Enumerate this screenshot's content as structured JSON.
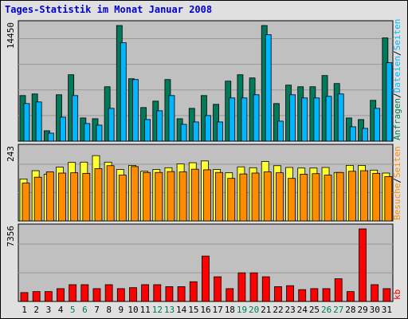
{
  "chart_data": {
    "type": "bar",
    "title": "Tages-Statistik im Monat Januar 2008",
    "categories": [
      "1",
      "2",
      "3",
      "4",
      "5",
      "6",
      "7",
      "8",
      "9",
      "10",
      "11",
      "12",
      "13",
      "14",
      "15",
      "16",
      "17",
      "18",
      "19",
      "20",
      "21",
      "22",
      "23",
      "24",
      "25",
      "26",
      "27",
      "28",
      "29",
      "30",
      "31"
    ],
    "weekend_days": [
      "5",
      "6",
      "12",
      "13",
      "19",
      "20",
      "26",
      "27"
    ],
    "colors": {
      "frame_bg": "#e0e0e0",
      "plot_bg": "#c0c0c0",
      "title": "#0000cc",
      "anfragen": "#007a5a",
      "dateien": "#00b7ff",
      "seiten_top": "#ffff33",
      "besuche": "#ff8c00",
      "kb": "#ff0000",
      "weekday_label": "#000000",
      "weekend_label": "#007a5a"
    },
    "panels": [
      {
        "id": "hits",
        "ymax_label": "14450",
        "ylim": [
          0,
          14450
        ],
        "series": [
          {
            "name": "Anfragen",
            "values": [
              5700,
              5900,
              1300,
              5800,
              8300,
              2900,
              2800,
              6800,
              14450,
              7800,
              4200,
              5000,
              7700,
              2800,
              4100,
              5700,
              4600,
              7500,
              8300,
              7900,
              14450,
              4700,
              7000,
              6800,
              6800,
              8200,
              7200,
              2900,
              2700,
              5100,
              12900
            ]
          },
          {
            "name": "Dateien",
            "values": [
              4700,
              4900,
              1000,
              3000,
              5700,
              2200,
              2000,
              4100,
              12300,
              7700,
              2700,
              3800,
              5700,
              2100,
              2400,
              3200,
              2400,
              5400,
              5400,
              5800,
              13300,
              2500,
              5800,
              5400,
              5400,
              5600,
              5900,
              1800,
              1600,
              4100,
              9800
            ]
          }
        ]
      },
      {
        "id": "visits",
        "ymax_label": "243",
        "ylim": [
          0,
          243
        ],
        "series": [
          {
            "name": "Seiten",
            "values": [
              142,
              170,
              158,
              182,
              198,
              199,
              221,
              199,
              174,
              188,
              168,
              174,
              180,
              193,
              197,
              203,
              174,
              163,
              183,
              180,
              201,
              187,
              181,
              179,
              179,
              181,
              164,
              188,
              188,
              172,
              162
            ]
          },
          {
            "name": "Besuche",
            "values": [
              128,
              148,
              166,
              162,
              163,
              161,
              177,
              187,
              155,
              184,
              164,
              164,
              167,
              166,
              175,
              173,
              164,
              144,
              159,
              162,
              166,
              163,
              144,
              158,
              160,
              155,
              164,
              168,
              170,
              161,
              150
            ]
          }
        ]
      },
      {
        "id": "kb",
        "ymax_label": "7356",
        "ylim": [
          0,
          7356
        ],
        "series": [
          {
            "name": "kb",
            "values": [
              900,
              1000,
              1000,
              1300,
              1700,
              1700,
              1300,
              1700,
              1300,
              1400,
              1700,
              1700,
              1500,
              1500,
              2000,
              4600,
              2500,
              1300,
              2900,
              2900,
              2500,
              1500,
              1600,
              1200,
              1300,
              1300,
              2300,
              1000,
              7356,
              1700,
              1300
            ]
          }
        ]
      }
    ],
    "legend": {
      "hits": [
        {
          "key": "anfragen",
          "text": "Anfragen"
        },
        {
          "key": "sep",
          "text": "/"
        },
        {
          "key": "dateien",
          "text": "Dateien"
        },
        {
          "key": "sep",
          "text": "/"
        },
        {
          "key": "dateien",
          "text": "Seiten"
        }
      ],
      "visits": [
        {
          "key": "besuche",
          "text": "Besuche"
        },
        {
          "key": "sep",
          "text": "/"
        },
        {
          "key": "besuche",
          "text": "Seiten"
        }
      ],
      "kb": [
        {
          "key": "kb",
          "text": "kb"
        }
      ]
    }
  }
}
